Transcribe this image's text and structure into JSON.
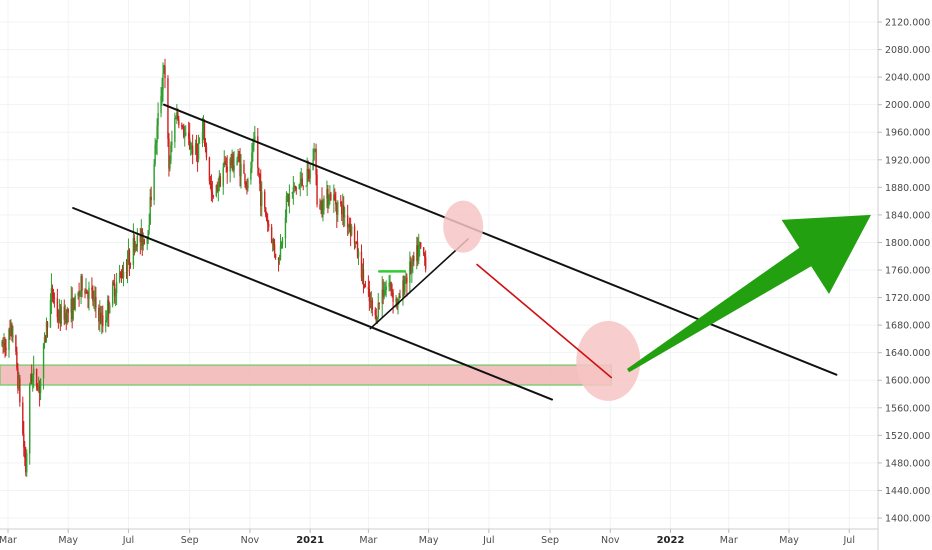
{
  "chart_data": {
    "type": "candlestick",
    "title": "",
    "xlabel": "",
    "ylabel": "",
    "x_range": [
      "2020-03-01",
      "2022-07-20"
    ],
    "ylim": [
      1392,
      2150
    ],
    "y_ticks": [
      1400,
      1440,
      1480,
      1520,
      1560,
      1600,
      1640,
      1680,
      1720,
      1760,
      1800,
      1840,
      1880,
      1920,
      1960,
      2000,
      2040,
      2080,
      2120
    ],
    "y_tick_labels": [
      "1400.000",
      "1440.000",
      "1480.000",
      "1520.000",
      "1560.000",
      "1600.000",
      "1640.000",
      "1680.000",
      "1720.000",
      "1760.000",
      "1800.000",
      "1840.000",
      "1880.000",
      "1920.000",
      "1960.000",
      "2000.000",
      "2040.000",
      "2080.000",
      "2120.000"
    ],
    "x_ticks": [
      {
        "date": "2020-03-01",
        "label": "Mar"
      },
      {
        "date": "2020-05-01",
        "label": "May"
      },
      {
        "date": "2020-07-01",
        "label": "Jul"
      },
      {
        "date": "2020-09-01",
        "label": "Sep"
      },
      {
        "date": "2020-11-01",
        "label": "Nov"
      },
      {
        "date": "2021-01-01",
        "label": "2021",
        "bold": true
      },
      {
        "date": "2021-03-01",
        "label": "Mar"
      },
      {
        "date": "2021-05-01",
        "label": "May"
      },
      {
        "date": "2021-07-01",
        "label": "Jul"
      },
      {
        "date": "2021-09-01",
        "label": "Sep"
      },
      {
        "date": "2021-11-01",
        "label": "Nov"
      },
      {
        "date": "2022-01-01",
        "label": "2022",
        "bold": true
      },
      {
        "date": "2022-03-01",
        "label": "Mar"
      },
      {
        "date": "2022-05-01",
        "label": "May"
      },
      {
        "date": "2022-07-01",
        "label": "Jul"
      }
    ],
    "grid": true,
    "colors": {
      "up": "#2e9e2e",
      "down": "#d02020",
      "zone_fill": "#f2b8b8",
      "zone_border": "#66cc66",
      "trendline": "#111111",
      "projection": "#d01010",
      "arrow": "#22a010",
      "circle": "#f7c4c4"
    },
    "price_path": [
      [
        "2020-02-24",
        1650
      ],
      [
        "2020-03-06",
        1670
      ],
      [
        "2020-03-12",
        1590
      ],
      [
        "2020-03-19",
        1470
      ],
      [
        "2020-03-24",
        1610
      ],
      [
        "2020-04-02",
        1590
      ],
      [
        "2020-04-09",
        1680
      ],
      [
        "2020-04-15",
        1730
      ],
      [
        "2020-04-21",
        1690
      ],
      [
        "2020-05-01",
        1700
      ],
      [
        "2020-05-08",
        1710
      ],
      [
        "2020-05-15",
        1740
      ],
      [
        "2020-05-25",
        1720
      ],
      [
        "2020-06-05",
        1680
      ],
      [
        "2020-06-15",
        1730
      ],
      [
        "2020-06-26",
        1760
      ],
      [
        "2020-07-08",
        1800
      ],
      [
        "2020-07-20",
        1810
      ],
      [
        "2020-07-29",
        1950
      ],
      [
        "2020-08-06",
        2060
      ],
      [
        "2020-08-11",
        1910
      ],
      [
        "2020-08-18",
        1990
      ],
      [
        "2020-08-28",
        1950
      ],
      [
        "2020-09-08",
        1930
      ],
      [
        "2020-09-15",
        1960
      ],
      [
        "2020-09-24",
        1860
      ],
      [
        "2020-10-05",
        1910
      ],
      [
        "2020-10-20",
        1920
      ],
      [
        "2020-10-30",
        1880
      ],
      [
        "2020-11-06",
        1950
      ],
      [
        "2020-11-12",
        1870
      ],
      [
        "2020-11-24",
        1800
      ],
      [
        "2020-11-30",
        1770
      ],
      [
        "2020-12-08",
        1860
      ],
      [
        "2020-12-18",
        1880
      ],
      [
        "2020-12-31",
        1895
      ],
      [
        "2021-01-06",
        1940
      ],
      [
        "2021-01-08",
        1850
      ],
      [
        "2021-01-20",
        1870
      ],
      [
        "2021-02-01",
        1850
      ],
      [
        "2021-02-12",
        1820
      ],
      [
        "2021-02-19",
        1780
      ],
      [
        "2021-02-26",
        1730
      ],
      [
        "2021-03-08",
        1690
      ],
      [
        "2021-03-15",
        1730
      ],
      [
        "2021-03-22",
        1740
      ],
      [
        "2021-03-31",
        1710
      ],
      [
        "2021-04-08",
        1750
      ],
      [
        "2021-04-16",
        1770
      ],
      [
        "2021-04-22",
        1790
      ],
      [
        "2021-04-28",
        1775
      ]
    ]
  },
  "annotations": {
    "descending_channel_upper": {
      "from": [
        "2020-08-06",
        2000
      ],
      "to": [
        "2022-06-18",
        1608
      ]
    },
    "descending_channel_lower": {
      "from": [
        "2020-05-06",
        1850
      ],
      "to": [
        "2021-09-03",
        1572
      ]
    },
    "short_support_line": {
      "from": [
        "2021-03-03",
        1675
      ],
      "to": [
        "2021-06-10",
        1805
      ]
    },
    "breakout_mark": {
      "from": [
        "2021-03-12",
        1758
      ],
      "to": [
        "2021-04-07",
        1758
      ]
    },
    "demand_zone": {
      "from": "2020-02-20",
      "to": "2021-11-02",
      "low": 1593,
      "high": 1622
    },
    "projection_path": {
      "from": [
        "2021-06-19",
        1768
      ],
      "to": [
        "2021-11-02",
        1604
      ]
    },
    "target_circle_1": {
      "center": [
        "2021-06-05",
        1823
      ]
    },
    "target_circle_2": {
      "center": [
        "2021-10-30",
        1628
      ]
    },
    "bullish_arrow": {
      "from": [
        "2021-11-19",
        1614
      ],
      "to": [
        "2022-07-23",
        1840
      ]
    }
  }
}
